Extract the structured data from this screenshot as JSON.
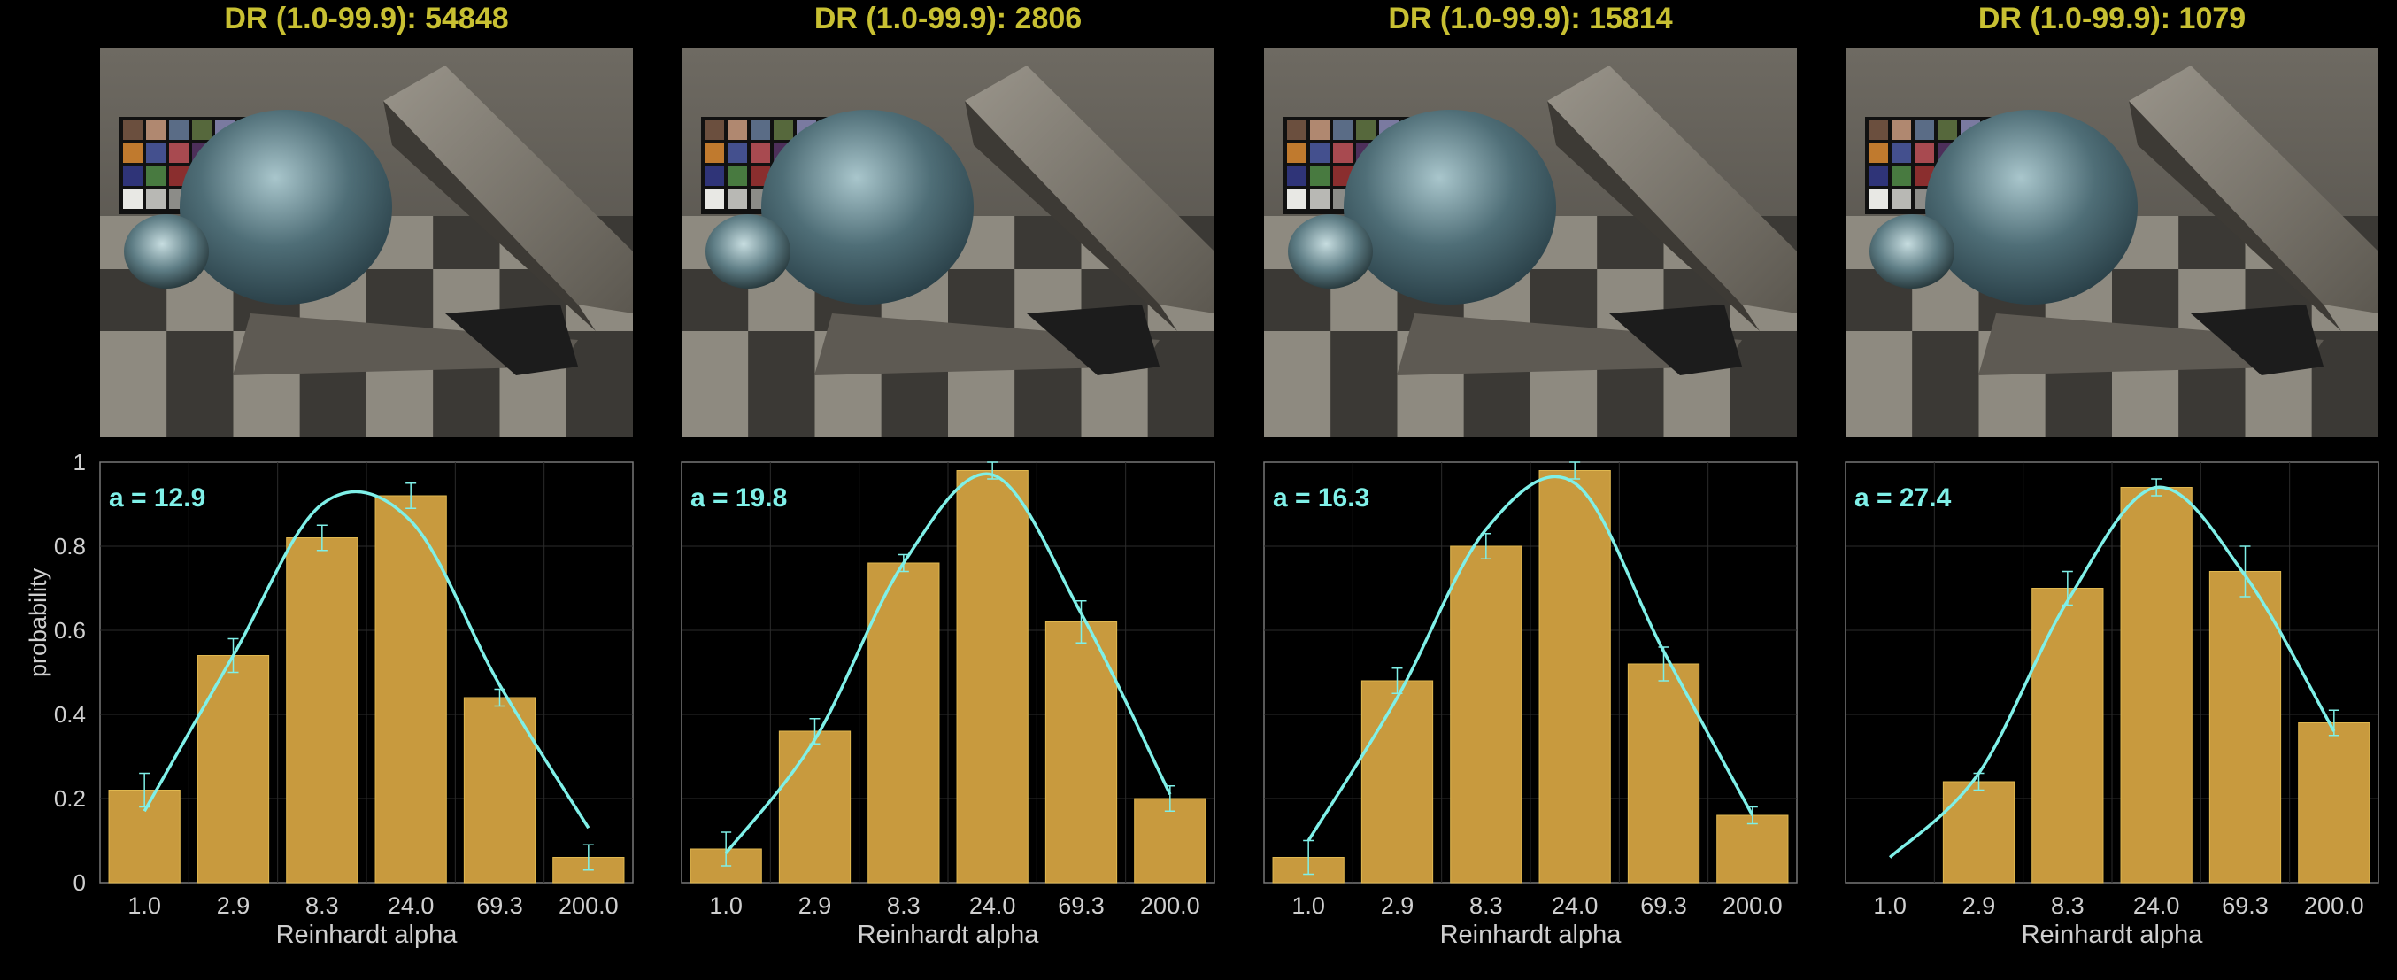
{
  "ylabel": "probability",
  "colors": {
    "title": "#c8c032",
    "bar": "#c89a3e",
    "curve": "#7ff0e8",
    "annotation": "#7ff0e8"
  },
  "panels": [
    {
      "title": "DR (1.0-99.9): 54848",
      "annotation": "a = 12.9"
    },
    {
      "title": "DR (1.0-99.9): 2806",
      "annotation": "a = 19.8"
    },
    {
      "title": "DR (1.0-99.9): 15814",
      "annotation": "a = 16.3"
    },
    {
      "title": "DR (1.0-99.9): 1079",
      "annotation": "a = 27.4"
    }
  ],
  "chart_data": [
    {
      "type": "bar",
      "title": "DR (1.0-99.9): 54848",
      "xlabel": "Reinhardt alpha",
      "ylabel": "probability",
      "categories": [
        "1.0",
        "2.9",
        "8.3",
        "24.0",
        "69.3",
        "200.0"
      ],
      "values": [
        0.22,
        0.54,
        0.82,
        0.92,
        0.44,
        0.06
      ],
      "errors": [
        0.04,
        0.04,
        0.03,
        0.03,
        0.02,
        0.03
      ],
      "fit_curve": [
        0.17,
        0.54,
        0.9,
        0.86,
        0.47,
        0.13
      ],
      "fit_peak": 0.94,
      "ylim": [
        0,
        1
      ],
      "yticks": [
        0,
        0.2,
        0.4,
        0.6,
        0.8,
        1
      ],
      "ytick_labels": [
        "0",
        "0.2",
        "0.4",
        "0.6",
        "0.8",
        "1"
      ],
      "grid": true
    },
    {
      "type": "bar",
      "title": "DR (1.0-99.9): 2806",
      "xlabel": "Reinhardt alpha",
      "ylabel": "",
      "categories": [
        "1.0",
        "2.9",
        "8.3",
        "24.0",
        "69.3",
        "200.0"
      ],
      "values": [
        0.08,
        0.36,
        0.76,
        0.98,
        0.62,
        0.2
      ],
      "errors": [
        0.04,
        0.03,
        0.02,
        0.02,
        0.05,
        0.03
      ],
      "fit_curve": [
        0.07,
        0.34,
        0.76,
        0.97,
        0.64,
        0.21
      ],
      "fit_peak": 0.98,
      "ylim": [
        0,
        1
      ],
      "grid": true
    },
    {
      "type": "bar",
      "title": "DR (1.0-99.9): 15814",
      "xlabel": "Reinhardt alpha",
      "ylabel": "",
      "categories": [
        "1.0",
        "2.9",
        "8.3",
        "24.0",
        "69.3",
        "200.0"
      ],
      "values": [
        0.06,
        0.48,
        0.8,
        0.98,
        0.52,
        0.16
      ],
      "errors": [
        0.04,
        0.03,
        0.03,
        0.02,
        0.04,
        0.02
      ],
      "fit_curve": [
        0.1,
        0.44,
        0.84,
        0.95,
        0.55,
        0.16
      ],
      "fit_peak": 0.98,
      "ylim": [
        0,
        1
      ],
      "grid": true
    },
    {
      "type": "bar",
      "title": "DR (1.0-99.9): 1079",
      "xlabel": "Reinhardt alpha",
      "ylabel": "",
      "categories": [
        "1.0",
        "2.9",
        "8.3",
        "24.0",
        "69.3",
        "200.0"
      ],
      "values": [
        0.0,
        0.24,
        0.7,
        0.94,
        0.74,
        0.38
      ],
      "errors": [
        0.0,
        0.02,
        0.04,
        0.02,
        0.06,
        0.03
      ],
      "fit_curve": [
        0.06,
        0.26,
        0.67,
        0.94,
        0.73,
        0.36
      ],
      "fit_peak": 0.95,
      "ylim": [
        0,
        1
      ],
      "grid": true
    }
  ]
}
